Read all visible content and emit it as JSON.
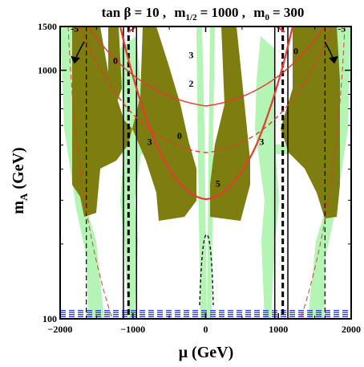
{
  "chart_data": {
    "type": "contour",
    "title": "tan β = 10 ,  m1/2 = 1000 ,  m0 = 300",
    "title_parts": {
      "tanb": "tan β = 10 ,",
      "mhalf_sym": "m",
      "mhalf_sub": "1/2",
      "mhalf_val": "= 1000 ,",
      "m0_sym": "m",
      "m0_sub": "0",
      "m0_val": "= 300"
    },
    "xlabel": "μ (GeV)",
    "ylabel": {
      "base": "m",
      "sub": "A",
      "unit": "(GeV)"
    },
    "xlim": [
      -2000,
      2000
    ],
    "ylim": [
      100,
      1500
    ],
    "yscale": "log",
    "x_ticks": [
      "−2000",
      "−1000",
      "0",
      "1000",
      "2000"
    ],
    "x_tick_values": [
      -2000,
      -1000,
      0,
      1000,
      2000
    ],
    "y_ticks": [
      "100",
      "1000",
      "1500"
    ],
    "y_tick_values": [
      100,
      1000,
      1500
    ],
    "colors": {
      "excluded_region": "#7d7d10",
      "relic_density_band": "#b4f4b4",
      "red_contours": "#e63b2e",
      "black_contours": "#000000",
      "blue_lines": "#3344dd"
    },
    "contour_labels": [
      {
        "text": "-5",
        "mu": -1800,
        "mA": 1430
      },
      {
        "text": "-5",
        "mu": 1870,
        "mA": 1430
      },
      {
        "text": "3",
        "mu": -200,
        "mA": 1120
      },
      {
        "text": "2",
        "mu": -200,
        "mA": 860
      },
      {
        "text": "0",
        "mu": -1240,
        "mA": 1060
      },
      {
        "text": "0",
        "mu": 1240,
        "mA": 1160
      },
      {
        "text": "0",
        "mu": -360,
        "mA": 530
      },
      {
        "text": "3",
        "mu": -770,
        "mA": 500
      },
      {
        "text": "3",
        "mu": 770,
        "mA": 500
      },
      {
        "text": "5",
        "mu": 170,
        "mA": 340
      }
    ],
    "red_solid_contours": [
      {
        "name": "0 parabola",
        "vertex_mu": 0,
        "vertex_mA": 600,
        "curvature": 1.19
      },
      {
        "name": "3 parabola",
        "vertex_mu": 0,
        "vertex_mA": 1120,
        "curvature": 0.22
      }
    ],
    "red_dashed_contours": [
      {
        "name": "2 parabola",
        "vertex_mu": 0,
        "vertex_mA": 850,
        "curvature": 0.43
      }
    ],
    "black_vertical_lines": [
      {
        "style": "solid",
        "mu": -1130
      },
      {
        "style": "solid",
        "mu": -950
      },
      {
        "style": "solid",
        "mu": 950
      },
      {
        "style": "solid",
        "mu": 1130
      },
      {
        "style": "thick-dashed",
        "mu": -1060
      },
      {
        "style": "thick-dashed",
        "mu": 1060
      },
      {
        "style": "dashed",
        "mu": -1640
      },
      {
        "style": "dashed",
        "mu": 1640
      }
    ],
    "blue_lines_mA": [
      102,
      104,
      106,
      108
    ]
  }
}
